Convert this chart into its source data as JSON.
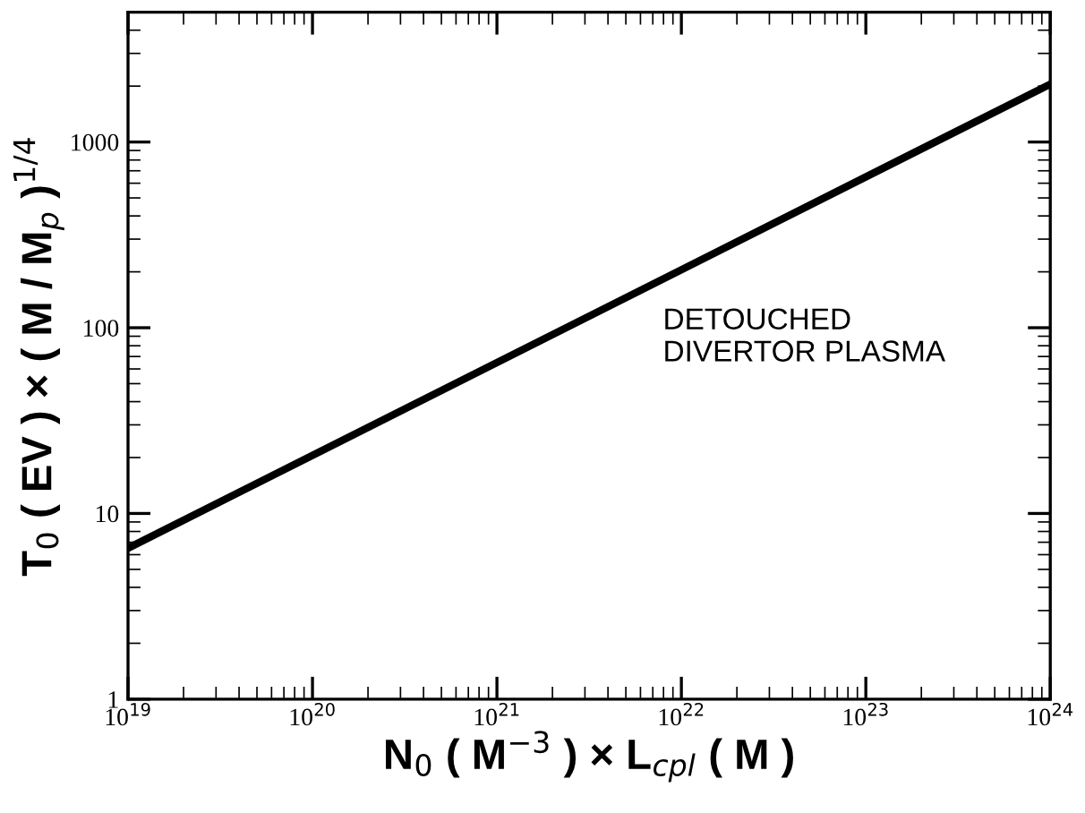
{
  "chart_data": {
    "type": "line",
    "xlabel": "N$_{0}$ ( M$^{−3}$ ) × L$_{cpl}$ ( M )",
    "ylabel": "T$_{0}$ ( EV ) × ( M / M$_{p}$ )$^{1/4}$",
    "x": [
      1e+19,
      1e+24
    ],
    "series": [
      {
        "color": "#000000",
        "values": [
          6.5,
          2050
        ]
      }
    ],
    "log": "xy",
    "xlim": [
      1e+19,
      1e+24
    ],
    "ylim": [
      1,
      5000
    ],
    "xticks": [
      {
        "value": 1e+19,
        "label": "10$^{19}$"
      },
      {
        "value": 1e+20,
        "label": "10$^{20}$"
      },
      {
        "value": 1e+21,
        "label": "10$^{21}$"
      },
      {
        "value": 1e+22,
        "label": "10$^{22}$"
      },
      {
        "value": 1e+23,
        "label": "10$^{23}$"
      },
      {
        "value": 1e+24,
        "label": "10$^{24}$"
      }
    ],
    "yticks": [
      1,
      10,
      100,
      1000
    ],
    "annotations": [
      "DETOUCHED\nDIVERTOR PLASMA"
    ],
    "grid": false,
    "legend": false,
    "marker": "none",
    "line_style": "solid"
  }
}
